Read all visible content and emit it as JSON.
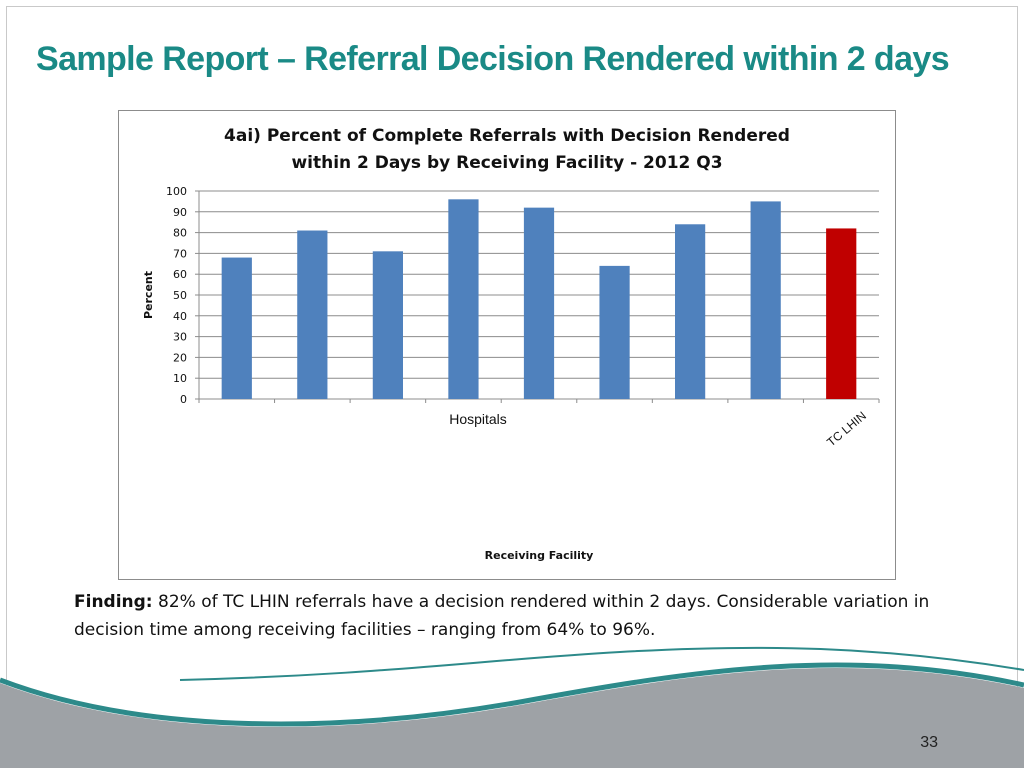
{
  "slide": {
    "title": "Sample Report – Referral Decision Rendered within 2 days",
    "finding_label": "Finding:",
    "finding_text": " 82% of TC LHIN referrals have a decision rendered within 2 days. Considerable variation in decision time among receiving facilities – ranging from 64% to 96%.",
    "page_number": "33",
    "colors": {
      "title": "#1a8a86",
      "wave_teal": "#2d8a8a",
      "wave_gray": "#9ea2a6"
    }
  },
  "chart_data": {
    "type": "bar",
    "title_line1": "4ai) Percent of Complete Referrals with Decision Rendered",
    "title_line2": "within 2 Days by Receiving Facility - 2012 Q3",
    "xlabel": "Receiving Facility",
    "ylabel": "Percent",
    "group_label": "Hospitals",
    "categories": [
      "",
      "",
      "",
      "",
      "",
      "",
      "",
      "",
      "TC LHIN"
    ],
    "values": [
      68,
      81,
      71,
      96,
      92,
      64,
      84,
      95,
      82
    ],
    "bar_colors": [
      "#4f81bd",
      "#4f81bd",
      "#4f81bd",
      "#4f81bd",
      "#4f81bd",
      "#4f81bd",
      "#4f81bd",
      "#4f81bd",
      "#c00000"
    ],
    "ylim": [
      0,
      100
    ],
    "yticks": [
      0,
      10,
      20,
      30,
      40,
      50,
      60,
      70,
      80,
      90,
      100
    ],
    "grid": true
  }
}
